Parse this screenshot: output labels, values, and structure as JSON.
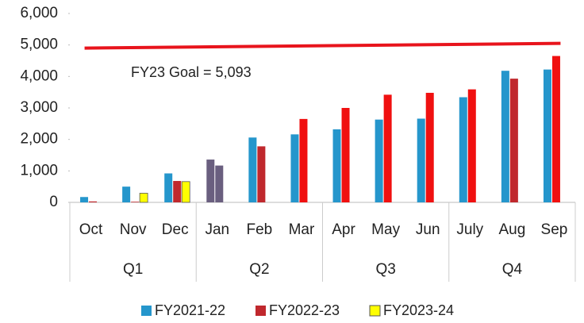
{
  "chart_data": {
    "type": "bar",
    "categories": [
      "Oct",
      "Nov",
      "Dec",
      "Jan",
      "Feb",
      "Mar",
      "Apr",
      "May",
      "Jun",
      "July",
      "Aug",
      "Sep"
    ],
    "groups": [
      "Q1",
      "Q2",
      "Q3",
      "Q4"
    ],
    "series": [
      {
        "name": "FY2021-22",
        "color": "#2596cc",
        "point_colors": [
          "#2596cc",
          "#2596cc",
          "#2596cc",
          "#6a5f7f",
          "#2596cc",
          "#2596cc",
          "#2596cc",
          "#2596cc",
          "#2596cc",
          "#2596cc",
          "#2596cc",
          "#2596cc"
        ],
        "values": [
          170,
          500,
          920,
          1360,
          2060,
          2160,
          2320,
          2630,
          2660,
          3340,
          4180,
          4220
        ]
      },
      {
        "name": "FY2022-23",
        "color": "#c0282d",
        "point_colors": [
          "#c0282d",
          "#c0282d",
          "#c0282d",
          "#6a5f7f",
          "#c0282d",
          "#f01010",
          "#f01010",
          "#f01010",
          "#f01010",
          "#f01010",
          "#c0282d",
          "#f01010"
        ],
        "values": [
          30,
          20,
          680,
          1170,
          1780,
          2650,
          3000,
          3420,
          3480,
          3590,
          3930,
          4650
        ]
      },
      {
        "name": "FY2023-24",
        "color": "#ffff00",
        "values": [
          null,
          290,
          660,
          null,
          null,
          null,
          null,
          null,
          null,
          null,
          null,
          null
        ]
      }
    ],
    "goal_line": {
      "start": 4900,
      "end": 5050,
      "color": "#e8141c"
    },
    "annotation": "FY23 Goal = 5,093",
    "ylim": [
      0,
      6000
    ],
    "yticks": [
      0,
      {
        "value": 1000,
        "label": "1,000"
      },
      {
        "value": 2000,
        "label": "2,000"
      },
      {
        "value": 3000,
        "label": "3,000"
      },
      {
        "value": 4000,
        "label": "4,000"
      },
      {
        "value": 5000,
        "label": "5,000"
      },
      {
        "value": 6000,
        "label": "6,000"
      }
    ],
    "legend": "bottom"
  }
}
